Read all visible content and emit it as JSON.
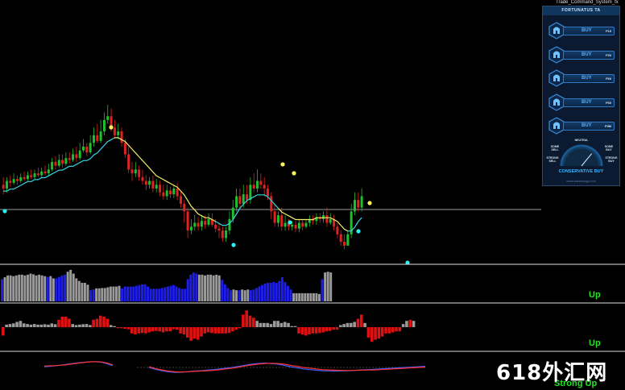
{
  "window": {
    "title": "Trade_Command_System_fx"
  },
  "ta_panel": {
    "header": "FORTUNATUS TA",
    "signals": [
      {
        "label": "BUY",
        "timeframe": "F15"
      },
      {
        "label": "BUY",
        "timeframe": "F30"
      },
      {
        "label": "BUY",
        "timeframe": "F60"
      },
      {
        "label": "BUY",
        "timeframe": "F60"
      },
      {
        "label": "BUY",
        "timeframe": "F0M"
      }
    ],
    "gauge": {
      "center_label": "NEUTRAL",
      "left_upper": "SOME SELL",
      "right_upper": "SOME BUY",
      "left_lower": "STRONG SELL",
      "right_lower": "STRONG BUY",
      "status": "CONSERVATIVE BUY",
      "url": "www.tradeology.com",
      "needle_value": 0.72
    }
  },
  "captions": {
    "panel1": "Up",
    "panel2": "Up",
    "panel3": "Strong Up"
  },
  "watermark": "618外汇网",
  "colors": {
    "bull_candle": "#1fbf2e",
    "bear_candle": "#e02222",
    "main_ma": "#33d6e6",
    "secondary_ma": "#f2f06a",
    "dot_cyan": "#2ff0f0",
    "dot_yellow": "#f7f35a",
    "hist_blue": "#1e1ee8",
    "hist_gray": "#9a9a9a",
    "hist_red": "#dd1111",
    "osc_red": "#ff3030",
    "osc_blue": "#3a62ff",
    "panel_line": "#dcdcdc",
    "accent": "#2f78c4"
  },
  "chart_data": {
    "type": "candlestick",
    "title": "",
    "price_axis_labels": false,
    "candles": [
      [
        50,
        48,
        54,
        45
      ],
      [
        48,
        52,
        54,
        46
      ],
      [
        52,
        51,
        55,
        49
      ],
      [
        51,
        53,
        56,
        50
      ],
      [
        53,
        52,
        55,
        50
      ],
      [
        52,
        54,
        56,
        51
      ],
      [
        54,
        53,
        57,
        52
      ],
      [
        53,
        55,
        57,
        52
      ],
      [
        55,
        54,
        58,
        53
      ],
      [
        54,
        56,
        58,
        53
      ],
      [
        56,
        55,
        59,
        54
      ],
      [
        55,
        57,
        59,
        54
      ],
      [
        57,
        56,
        60,
        55
      ],
      [
        56,
        58,
        61,
        55
      ],
      [
        58,
        62,
        64,
        57
      ],
      [
        62,
        60,
        65,
        58
      ],
      [
        60,
        63,
        66,
        59
      ],
      [
        63,
        61,
        66,
        59
      ],
      [
        61,
        64,
        67,
        60
      ],
      [
        64,
        63,
        67,
        61
      ],
      [
        63,
        66,
        69,
        62
      ],
      [
        66,
        64,
        70,
        62
      ],
      [
        64,
        68,
        72,
        63
      ],
      [
        68,
        70,
        74,
        67
      ],
      [
        70,
        67,
        72,
        65
      ],
      [
        67,
        72,
        76,
        66
      ],
      [
        72,
        76,
        80,
        70
      ],
      [
        76,
        73,
        82,
        72
      ],
      [
        73,
        78,
        84,
        72
      ],
      [
        78,
        84,
        88,
        76
      ],
      [
        84,
        86,
        92,
        82
      ],
      [
        86,
        80,
        90,
        78
      ],
      [
        80,
        76,
        84,
        74
      ],
      [
        76,
        78,
        82,
        74
      ],
      [
        78,
        72,
        80,
        70
      ],
      [
        72,
        66,
        74,
        64
      ],
      [
        66,
        58,
        70,
        56
      ],
      [
        58,
        56,
        62,
        52
      ],
      [
        56,
        58,
        62,
        54
      ],
      [
        58,
        54,
        60,
        52
      ],
      [
        54,
        52,
        58,
        50
      ],
      [
        52,
        50,
        55,
        47
      ],
      [
        50,
        52,
        54,
        48
      ],
      [
        52,
        48,
        55,
        46
      ],
      [
        48,
        50,
        53,
        46
      ],
      [
        50,
        46,
        52,
        44
      ],
      [
        46,
        44,
        50,
        42
      ],
      [
        44,
        47,
        50,
        42
      ],
      [
        47,
        45,
        49,
        43
      ],
      [
        45,
        48,
        50,
        43
      ],
      [
        48,
        44,
        51,
        42
      ],
      [
        44,
        40,
        47,
        38
      ],
      [
        40,
        36,
        42,
        30
      ],
      [
        36,
        26,
        38,
        22
      ],
      [
        26,
        28,
        32,
        24
      ],
      [
        28,
        30,
        34,
        26
      ],
      [
        30,
        28,
        33,
        26
      ],
      [
        28,
        31,
        34,
        26
      ],
      [
        31,
        29,
        34,
        27
      ],
      [
        29,
        32,
        35,
        28
      ],
      [
        32,
        29,
        35,
        28
      ],
      [
        29,
        27,
        32,
        25
      ],
      [
        27,
        26,
        30,
        22
      ],
      [
        26,
        22,
        28,
        20
      ],
      [
        22,
        26,
        28,
        20
      ],
      [
        26,
        32,
        36,
        24
      ],
      [
        32,
        38,
        42,
        30
      ],
      [
        38,
        44,
        48,
        36
      ],
      [
        44,
        40,
        48,
        38
      ],
      [
        40,
        45,
        50,
        38
      ],
      [
        45,
        42,
        50,
        40
      ],
      [
        42,
        50,
        54,
        40
      ],
      [
        50,
        48,
        56,
        46
      ],
      [
        48,
        52,
        58,
        46
      ],
      [
        52,
        50,
        56,
        48
      ],
      [
        50,
        48,
        54,
        44
      ],
      [
        48,
        44,
        50,
        42
      ],
      [
        44,
        36,
        46,
        32
      ],
      [
        36,
        30,
        40,
        28
      ],
      [
        30,
        34,
        36,
        28
      ],
      [
        34,
        28,
        38,
        26
      ],
      [
        28,
        30,
        34,
        26
      ],
      [
        30,
        28,
        32,
        26
      ],
      [
        28,
        29,
        31,
        26
      ],
      [
        29,
        27,
        31,
        25
      ],
      [
        27,
        30,
        32,
        25
      ],
      [
        30,
        28,
        32,
        26
      ],
      [
        28,
        30,
        32,
        27
      ],
      [
        30,
        32,
        34,
        28
      ],
      [
        32,
        31,
        34,
        29
      ],
      [
        31,
        33,
        35,
        29
      ],
      [
        33,
        32,
        35,
        30
      ],
      [
        32,
        34,
        36,
        30
      ],
      [
        34,
        30,
        38,
        28
      ],
      [
        30,
        32,
        35,
        29
      ],
      [
        32,
        28,
        34,
        26
      ],
      [
        28,
        24,
        30,
        22
      ],
      [
        24,
        20,
        26,
        18
      ],
      [
        20,
        18,
        24,
        16
      ],
      [
        18,
        24,
        26,
        18
      ],
      [
        24,
        36,
        40,
        22
      ],
      [
        36,
        42,
        46,
        34
      ],
      [
        42,
        38,
        46,
        36
      ],
      [
        38,
        44,
        48,
        36
      ]
    ],
    "main_ma": [
      45,
      45,
      46,
      46,
      47,
      48,
      49,
      50,
      50,
      51,
      51,
      52,
      52,
      53,
      54,
      55,
      56,
      56,
      57,
      58,
      58,
      59,
      60,
      61,
      61,
      62,
      64,
      65,
      67,
      69,
      71,
      72,
      73,
      73,
      72,
      71,
      69,
      67,
      65,
      63,
      61,
      59,
      57,
      55,
      53,
      52,
      51,
      50,
      49,
      48,
      47,
      45,
      43,
      40,
      37,
      35,
      33,
      32,
      31,
      31,
      30,
      29,
      28,
      27,
      27,
      28,
      30,
      33,
      36,
      38,
      40,
      41,
      42,
      43,
      43,
      43,
      42,
      40,
      38,
      36,
      34,
      33,
      32,
      31,
      30,
      30,
      30,
      30,
      30,
      30,
      31,
      31,
      31,
      31,
      31,
      30,
      29,
      27,
      25,
      24,
      24,
      26,
      29,
      31
    ],
    "yellow_dots": [
      33,
      83,
      88,
      110
    ],
    "cyan_dots": [
      1,
      69,
      86,
      106,
      121
    ],
    "histogram_1": [
      [
        1,
        0.6
      ],
      [
        2,
        0.65
      ],
      [
        2,
        0.7
      ],
      [
        2,
        0.7
      ],
      [
        2,
        0.68
      ],
      [
        2,
        0.7
      ],
      [
        2,
        0.72
      ],
      [
        2,
        0.72
      ],
      [
        2,
        0.7
      ],
      [
        2,
        0.72
      ],
      [
        2,
        0.75
      ],
      [
        2,
        0.73
      ],
      [
        2,
        0.7
      ],
      [
        2,
        0.72
      ],
      [
        2,
        0.7
      ],
      [
        2,
        0.68
      ],
      [
        1,
        0.66
      ],
      [
        2,
        0.68
      ],
      [
        2,
        0.62
      ],
      [
        1,
        0.62
      ],
      [
        1,
        0.66
      ],
      [
        1,
        0.7
      ],
      [
        1,
        0.72
      ],
      [
        2,
        0.8
      ],
      [
        2,
        0.85
      ],
      [
        2,
        0.75
      ],
      [
        2,
        0.62
      ],
      [
        2,
        0.55
      ],
      [
        2,
        0.5
      ],
      [
        2,
        0.5
      ],
      [
        2,
        0.45
      ],
      [
        1,
        0.3
      ],
      [
        1,
        0.32
      ],
      [
        2,
        0.35
      ],
      [
        2,
        0.35
      ],
      [
        2,
        0.36
      ],
      [
        2,
        0.36
      ],
      [
        2,
        0.38
      ],
      [
        2,
        0.4
      ],
      [
        2,
        0.4
      ],
      [
        2,
        0.4
      ],
      [
        2,
        0.42
      ],
      [
        1,
        0.35
      ],
      [
        1,
        0.4
      ],
      [
        1,
        0.4
      ],
      [
        1,
        0.4
      ],
      [
        1,
        0.4
      ],
      [
        1,
        0.42
      ],
      [
        1,
        0.44
      ],
      [
        1,
        0.46
      ],
      [
        1,
        0.46
      ],
      [
        1,
        0.4
      ],
      [
        1,
        0.34
      ],
      [
        1,
        0.34
      ],
      [
        1,
        0.34
      ],
      [
        1,
        0.34
      ],
      [
        1,
        0.36
      ],
      [
        1,
        0.38
      ],
      [
        1,
        0.4
      ],
      [
        1,
        0.42
      ],
      [
        1,
        0.44
      ],
      [
        1,
        0.4
      ],
      [
        1,
        0.36
      ],
      [
        1,
        0.34
      ],
      [
        1,
        0.34
      ],
      [
        1,
        0.6
      ],
      [
        1,
        0.72
      ],
      [
        1,
        0.78
      ],
      [
        1,
        0.75
      ],
      [
        2,
        0.72
      ],
      [
        2,
        0.72
      ],
      [
        2,
        0.7
      ],
      [
        2,
        0.72
      ],
      [
        2,
        0.72
      ],
      [
        2,
        0.7
      ],
      [
        2,
        0.72
      ],
      [
        2,
        0.7
      ],
      [
        1,
        0.58
      ],
      [
        1,
        0.46
      ],
      [
        1,
        0.36
      ],
      [
        1,
        0.3
      ],
      [
        2,
        0.32
      ],
      [
        2,
        0.3
      ],
      [
        1,
        0.3
      ],
      [
        2,
        0.32
      ],
      [
        2,
        0.3
      ],
      [
        2,
        0.32
      ],
      [
        1,
        0.3
      ],
      [
        1,
        0.32
      ],
      [
        1,
        0.36
      ],
      [
        1,
        0.4
      ],
      [
        1,
        0.44
      ],
      [
        1,
        0.48
      ],
      [
        1,
        0.5
      ],
      [
        1,
        0.5
      ],
      [
        1,
        0.52
      ],
      [
        1,
        0.5
      ],
      [
        1,
        0.55
      ],
      [
        1,
        0.65
      ],
      [
        1,
        0.52
      ],
      [
        1,
        0.42
      ],
      [
        1,
        0.32
      ],
      [
        2,
        0.22
      ],
      [
        2,
        0.22
      ],
      [
        2,
        0.22
      ],
      [
        2,
        0.22
      ],
      [
        2,
        0.22
      ],
      [
        2,
        0.22
      ],
      [
        2,
        0.22
      ],
      [
        2,
        0.22
      ],
      [
        2,
        0.22
      ],
      [
        2,
        0.2
      ],
      [
        1,
        0.6
      ],
      [
        2,
        0.78
      ],
      [
        2,
        0.8
      ],
      [
        2,
        0.78
      ]
    ],
    "histogram_1_codes": [
      "none",
      "blue",
      "gray"
    ],
    "histogram_2": [
      -0.4,
      0.12,
      0.15,
      0.18,
      0.25,
      0.3,
      0.18,
      0.15,
      0.12,
      0.15,
      0.12,
      0.12,
      0.14,
      0.12,
      0.18,
      0.14,
      0.35,
      0.5,
      0.5,
      0.4,
      0.15,
      0.1,
      0.12,
      0.14,
      0.15,
      0.1,
      0.35,
      0.4,
      0.55,
      0.5,
      0.4,
      0.1,
      0.05,
      -0.05,
      -0.05,
      -0.08,
      -0.1,
      -0.3,
      -0.35,
      -0.3,
      -0.28,
      -0.3,
      -0.25,
      -0.2,
      -0.18,
      -0.2,
      -0.25,
      -0.2,
      -0.2,
      -0.1,
      -0.12,
      -0.3,
      -0.35,
      -0.5,
      -0.65,
      -0.55,
      -0.6,
      -0.45,
      -0.3,
      -0.25,
      -0.28,
      -0.3,
      -0.3,
      -0.3,
      -0.3,
      -0.28,
      -0.2,
      -0.12,
      -0.05,
      0.6,
      0.8,
      0.55,
      0.45,
      0.3,
      0.2,
      0.2,
      0.2,
      0.15,
      0.3,
      0.3,
      0.2,
      0.25,
      0.2,
      0.05,
      0.05,
      -0.3,
      -0.35,
      -0.4,
      -0.35,
      -0.3,
      -0.3,
      -0.28,
      -0.25,
      -0.2,
      -0.18,
      -0.12,
      -0.12,
      0.1,
      0.15,
      0.2,
      0.2,
      0.25,
      0.4,
      0.6,
      0.2,
      -0.5,
      -0.7,
      -0.6,
      -0.55,
      -0.45,
      -0.3,
      -0.3,
      -0.25,
      -0.2,
      -0.2,
      0.15,
      0.3,
      0.35,
      0.3
    ],
    "histogram_2_colors": "positive bars gray when below 0.32 else red; negative bars red",
    "oscillator_red": [
      0.2,
      0.22,
      0.25,
      0.3,
      0.35,
      0.45,
      0.55,
      0.65,
      0.72,
      0.78,
      0.8,
      0.75,
      0.6,
      0.35,
      0.1,
      -0.15,
      -0.35,
      -0.5,
      -0.6,
      -0.62,
      -0.6,
      -0.55,
      -0.5,
      -0.45,
      -0.4,
      -0.32,
      -0.2,
      -0.1,
      0.05,
      0.2,
      0.35,
      0.45,
      0.55,
      0.58,
      0.55,
      0.45,
      0.3,
      0.15,
      0.0,
      -0.1,
      -0.2,
      -0.3,
      -0.35,
      -0.38,
      -0.4,
      -0.42,
      -0.4,
      -0.38,
      -0.36,
      -0.34,
      -0.3,
      -0.25,
      -0.2,
      -0.15,
      -0.1,
      -0.05,
      0.0,
      0.05
    ],
    "oscillator_blue": [
      0.1,
      0.15,
      0.22,
      0.3,
      0.4,
      0.5,
      0.6,
      0.68,
      0.75,
      0.8,
      0.78,
      0.7,
      0.5,
      0.25,
      0.0,
      -0.25,
      -0.45,
      -0.6,
      -0.68,
      -0.65,
      -0.6,
      -0.5,
      -0.45,
      -0.38,
      -0.3,
      -0.2,
      -0.1,
      0.0,
      0.15,
      0.3,
      0.45,
      0.55,
      0.6,
      0.55,
      0.45,
      0.3,
      0.1,
      -0.05,
      -0.2,
      -0.3,
      -0.38,
      -0.45,
      -0.48,
      -0.5,
      -0.48,
      -0.45,
      -0.4,
      -0.35,
      -0.3,
      -0.25,
      -0.2,
      -0.15,
      -0.1,
      -0.05,
      0.0,
      0.05,
      0.1,
      0.15
    ]
  }
}
